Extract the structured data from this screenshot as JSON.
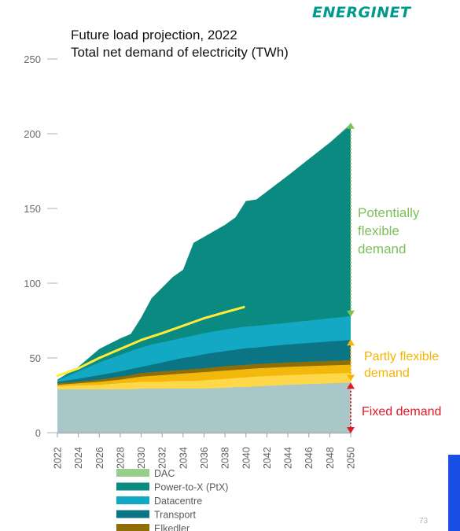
{
  "header": {
    "logo_text": "ENERGINET",
    "title_line1": "Future load projection, 2022",
    "title_line2": "Total net demand of electricity (TWh)"
  },
  "footer": {
    "page_number": "73"
  },
  "colors": {
    "base": "#a9c6c9",
    "light_yellow": "#ffd84a",
    "mid_yellow": "#f2b90c",
    "elkedler": "#8f6d07",
    "transport": "#0b7585",
    "datacentre": "#13a8c4",
    "ptx": "#0b8a82",
    "dac": "#96cf8c",
    "trend_line": "#ffeb3b",
    "flexible": "#7cc05a",
    "partly_flexible": "#f4b400",
    "fixed": "#e01b24",
    "accent_bar": "#1a4fe6"
  },
  "annotations": {
    "potentially_flexible": [
      "Potentially",
      "flexible",
      "demand"
    ],
    "partly_flexible": [
      "Partly flexible",
      "demand"
    ],
    "fixed": [
      "Fixed demand"
    ]
  },
  "chart_data": {
    "type": "area",
    "title": "Future load projection, 2022",
    "subtitle": "Total net demand of electricity (TWh)",
    "xlabel": "",
    "ylabel": "",
    "ylim": [
      0,
      250
    ],
    "yticks": [
      0,
      50,
      100,
      150,
      200,
      250
    ],
    "xticks": [
      2022,
      2024,
      2026,
      2028,
      2030,
      2032,
      2034,
      2036,
      2038,
      2040,
      2042,
      2044,
      2046,
      2048,
      2050
    ],
    "grid": false,
    "legend_position": "bottom",
    "x": [
      2022,
      2024,
      2026,
      2028,
      2029,
      2030,
      2031,
      2032,
      2033,
      2034,
      2035,
      2036,
      2038,
      2039,
      2040,
      2041,
      2044,
      2046,
      2048,
      2050
    ],
    "cumulative": true,
    "layers": [
      {
        "name": "",
        "color_key": "base",
        "values": [
          29,
          29,
          29,
          29,
          29,
          29.5,
          29.5,
          29.5,
          29.5,
          29.5,
          29.5,
          29.5,
          30,
          30.5,
          30.5,
          31,
          32,
          32.5,
          33,
          33.5
        ]
      },
      {
        "name": "",
        "color_key": "light_yellow",
        "values": [
          31,
          31.5,
          32,
          33,
          33.5,
          34,
          34,
          34,
          34.5,
          34.5,
          34.5,
          35,
          36,
          36.5,
          37,
          37.5,
          38.5,
          39,
          39.5,
          40
        ]
      },
      {
        "name": "",
        "color_key": "mid_yellow",
        "values": [
          32,
          33,
          34,
          35.5,
          36.5,
          37.5,
          38,
          38.5,
          39,
          39.5,
          40,
          40.5,
          41.5,
          42,
          42.5,
          43,
          44,
          44.5,
          45,
          45.5
        ]
      },
      {
        "name": "Elkedler",
        "color_key": "elkedler",
        "values": [
          33,
          34,
          35.5,
          37.5,
          38.5,
          40,
          40.5,
          41,
          41.5,
          42,
          42.5,
          43,
          44.5,
          45,
          45.5,
          46,
          47,
          47.5,
          48,
          48.5
        ]
      },
      {
        "name": "Transport",
        "color_key": "transport",
        "values": [
          34,
          36,
          38.5,
          41,
          42.5,
          44,
          45.5,
          47,
          48.5,
          50,
          51,
          52.5,
          54.5,
          55.5,
          56.5,
          57,
          59,
          60,
          61,
          62
        ]
      },
      {
        "name": "Datacentre",
        "color_key": "datacentre",
        "values": [
          35,
          41,
          47,
          52,
          54.5,
          57,
          59,
          60.5,
          62,
          63.5,
          65,
          66.5,
          69,
          70,
          71,
          71.5,
          73.5,
          75,
          76.5,
          78
        ]
      },
      {
        "name": "Power-to-X (PtX)",
        "color_key": "ptx",
        "values": [
          35.5,
          44,
          56,
          63,
          66,
          77,
          90,
          97,
          104,
          109,
          127,
          131,
          139,
          144,
          155,
          156,
          172,
          183,
          194,
          206
        ]
      },
      {
        "name": "DAC",
        "color_key": "dac",
        "values": [
          35.5,
          44,
          56,
          63,
          66,
          77,
          90,
          97,
          104,
          109,
          127,
          131,
          139,
          144,
          155,
          156,
          172,
          183,
          194,
          207
        ]
      }
    ],
    "trend_line": {
      "name": "",
      "x": [
        2022,
        2024,
        2026,
        2028,
        2030,
        2032,
        2034,
        2036,
        2038,
        2039.8
      ],
      "values": [
        38,
        43,
        50,
        56,
        62,
        66.5,
        71.5,
        76.5,
        80.5,
        84
      ]
    },
    "legend": [
      {
        "label": "DAC",
        "color_key": "dac"
      },
      {
        "label": "Power-to-X (PtX)",
        "color_key": "ptx"
      },
      {
        "label": "Datacentre",
        "color_key": "datacentre"
      },
      {
        "label": "Transport",
        "color_key": "transport"
      },
      {
        "label": "Elkedler",
        "color_key": "elkedler"
      }
    ],
    "demand_ranges": [
      {
        "label": "Potentially flexible demand",
        "from": 78,
        "to": 207,
        "color_key": "flexible"
      },
      {
        "label": "Partly flexible demand",
        "from": 35,
        "to": 62,
        "color_key": "partly_flexible"
      },
      {
        "label": "Fixed demand",
        "from": 0,
        "to": 33,
        "color_key": "fixed"
      }
    ]
  }
}
